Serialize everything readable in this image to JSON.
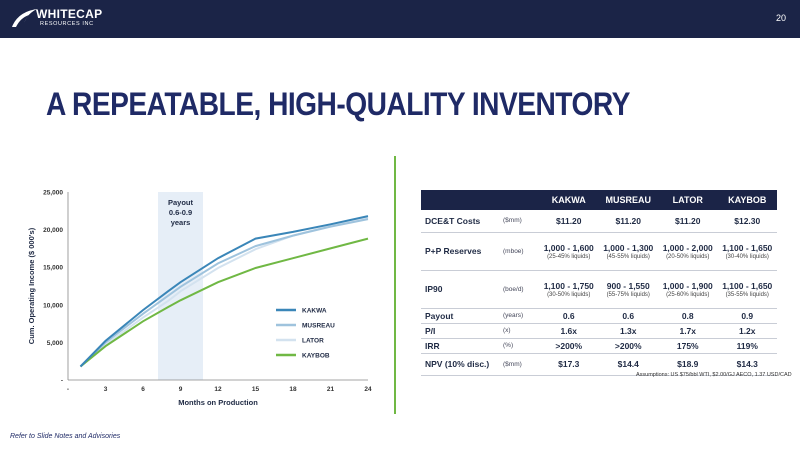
{
  "header": {
    "logo_main": "WHITECAP",
    "logo_sub": "RESOURCES INC",
    "page_number": "20"
  },
  "title": "A REPEATABLE, HIGH-QUALITY INVENTORY",
  "colors": {
    "header_bg": "#1b2447",
    "title": "#1f2a66",
    "divider": "#70b844",
    "kakwa": "#3a86b8",
    "musreau": "#9fc3dd",
    "lator": "#d3e2ef",
    "kaybob": "#70b844"
  },
  "chart_data": {
    "type": "line",
    "title": "",
    "xlabel": "Months on Production",
    "ylabel": "Cum. Operating Income ($ 000's)",
    "x_ticks": [
      "-",
      "3",
      "6",
      "9",
      "12",
      "15",
      "18",
      "21",
      "24"
    ],
    "y_ticks": [
      "-",
      "5,000",
      "10,000",
      "15,000",
      "20,000",
      "25,000"
    ],
    "xlim": [
      0,
      24
    ],
    "ylim": [
      0,
      25000
    ],
    "payout_band": {
      "label": "Payout\n0.6-0.9\nyears",
      "label_lines": [
        "Payout",
        "0.6-0.9",
        "years"
      ],
      "x_range": [
        7.2,
        10.8
      ]
    },
    "x": [
      1,
      3,
      6,
      8,
      9,
      12,
      15,
      18,
      21,
      24
    ],
    "series": [
      {
        "name": "KAKWA",
        "color": "#3a86b8",
        "values": [
          1800,
          5200,
          9300,
          11800,
          13000,
          16200,
          18800,
          19700,
          20700,
          21800
        ]
      },
      {
        "name": "MUSREAU",
        "color": "#9fc3dd",
        "values": [
          1800,
          5000,
          8800,
          11200,
          12400,
          15500,
          17800,
          19200,
          20400,
          21400
        ]
      },
      {
        "name": "LATOR",
        "color": "#d3e2ef",
        "values": [
          1800,
          4700,
          8300,
          10500,
          11800,
          14900,
          17400,
          19200,
          20500,
          21600
        ]
      },
      {
        "name": "KAYBOB",
        "color": "#70b844",
        "values": [
          1800,
          4500,
          7800,
          9700,
          10600,
          13000,
          14900,
          16200,
          17500,
          18800
        ]
      }
    ],
    "legend_position": "inside-right",
    "grid": false
  },
  "table": {
    "headers": [
      "",
      "",
      "KAKWA",
      "MUSREAU",
      "LATOR",
      "KAYBOB"
    ],
    "rows": [
      {
        "label": "DCE&T Costs",
        "unit": "($mm)",
        "values": [
          "$11.20",
          "$11.20",
          "$11.20",
          "$12.30"
        ],
        "subs": []
      },
      {
        "label": "P+P Reserves",
        "unit": "(mboe)",
        "values": [
          "1,000 - 1,600",
          "1,000 - 1,300",
          "1,000 - 2,000",
          "1,100 - 1,650"
        ],
        "subs": [
          "(25-45% liquids)",
          "(45-55% liquids)",
          "(20-50% liquids)",
          "(30-40% liquids)"
        ]
      },
      {
        "label": "IP90",
        "unit": "(boe/d)",
        "values": [
          "1,100 - 1,750",
          "900 - 1,550",
          "1,000 - 1,900",
          "1,100 - 1,650"
        ],
        "subs": [
          "(30-50% liquids)",
          "(55-75% liquids)",
          "(25-60% liquids)",
          "(35-55% liquids)"
        ]
      },
      {
        "label": "Payout",
        "unit": "(years)",
        "values": [
          "0.6",
          "0.6",
          "0.8",
          "0.9"
        ],
        "subs": []
      },
      {
        "label": "P/I",
        "unit": "(x)",
        "values": [
          "1.6x",
          "1.3x",
          "1.7x",
          "1.2x"
        ],
        "subs": []
      },
      {
        "label": "IRR",
        "unit": "(%)",
        "values": [
          ">200%",
          ">200%",
          "175%",
          "119%"
        ],
        "subs": []
      },
      {
        "label": "NPV (10% disc.)",
        "unit": "($mm)",
        "values": [
          "$17.3",
          "$14.4",
          "$18.9",
          "$14.3"
        ],
        "subs": []
      }
    ]
  },
  "assumptions": "Assumptions: US $75/bbl WTI, $2.00/GJ AECO, 1.37 USD/CAD",
  "footnote": "Refer to Slide Notes and Advisories"
}
